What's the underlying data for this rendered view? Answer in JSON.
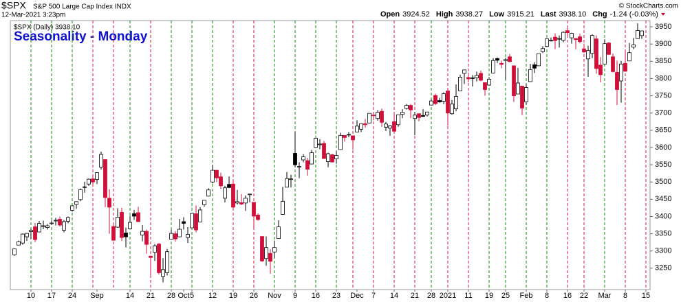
{
  "chart_data": {
    "type": "candlestick",
    "symbol": "$SPX",
    "description": "S&P 500 Large Cap Index INDX",
    "timestamp": "12-Mar-2021 3:23pm",
    "credit": "© StockCharts.com",
    "quote": [
      {
        "label": "Open",
        "value": "3924.52"
      },
      {
        "label": "High",
        "value": "3938.27"
      },
      {
        "label": "Low",
        "value": "3915.21"
      },
      {
        "label": "Last",
        "value": "3938.10"
      },
      {
        "label": "Chg",
        "value": "-1.24 (-0.03%)"
      }
    ],
    "title": "Seasonality - Monday",
    "legend": "$SPX (Daily) 3938.10",
    "categories": [
      null,
      null,
      null,
      null,
      "10",
      null,
      null,
      null,
      null,
      "17",
      null,
      null,
      null,
      null,
      "24",
      null,
      null,
      null,
      null,
      null,
      "Sep",
      null,
      null,
      null,
      null,
      null,
      null,
      null,
      "14",
      null,
      null,
      null,
      null,
      "21",
      null,
      null,
      null,
      null,
      "28",
      null,
      null,
      "Oct",
      null,
      "5",
      null,
      null,
      null,
      null,
      "12",
      null,
      null,
      null,
      null,
      "19",
      null,
      null,
      null,
      null,
      "26",
      null,
      null,
      null,
      null,
      "Nov",
      null,
      null,
      null,
      null,
      "9",
      null,
      null,
      null,
      null,
      "16",
      null,
      null,
      null,
      null,
      "23",
      null,
      null,
      null,
      null,
      "Dec",
      null,
      null,
      null,
      "7",
      null,
      null,
      null,
      null,
      "14",
      null,
      null,
      null,
      null,
      "21",
      null,
      null,
      null,
      "28",
      null,
      null,
      null,
      "2021",
      null,
      null,
      null,
      null,
      "11",
      null,
      null,
      null,
      null,
      "19",
      null,
      null,
      null,
      "25",
      null,
      null,
      null,
      null,
      "Feb",
      null,
      null,
      null,
      null,
      "8",
      null,
      null,
      null,
      null,
      "16",
      null,
      null,
      null,
      "22",
      null,
      null,
      null,
      null,
      "Mar",
      null,
      null,
      null,
      null,
      "8",
      null,
      null,
      null,
      null,
      "15"
    ],
    "candles": [
      [
        3289,
        3306,
        3286,
        3306
      ],
      [
        3317,
        3330,
        3317,
        3327
      ],
      [
        3323,
        3351,
        3318,
        3349
      ],
      [
        3341,
        3352,
        3329,
        3351
      ],
      [
        3356,
        3364,
        3335,
        3360
      ],
      [
        3370,
        3381,
        3326,
        3333
      ],
      [
        3355,
        3387,
        3355,
        3380
      ],
      [
        3373,
        3388,
        3363,
        3373
      ],
      [
        3368,
        3378,
        3362,
        3373
      ],
      [
        3380,
        3388,
        3376,
        3381
      ],
      [
        3387,
        3396,
        3374,
        3389
      ],
      [
        3392,
        3400,
        3371,
        3375
      ],
      [
        3360,
        3390,
        3354,
        3385
      ],
      [
        3386,
        3400,
        3380,
        3397
      ],
      [
        3418,
        3432,
        3414,
        3431
      ],
      [
        3435,
        3444,
        3422,
        3443
      ],
      [
        3449,
        3481,
        3444,
        3478
      ],
      [
        3486,
        3501,
        3469,
        3484
      ],
      [
        3494,
        3510,
        3489,
        3508
      ],
      [
        3509,
        3514,
        3494,
        3500
      ],
      [
        3507,
        3528,
        3494,
        3527
      ],
      [
        3543,
        3588,
        3536,
        3580
      ],
      [
        3565,
        3565,
        3427,
        3455
      ],
      [
        3453,
        3479,
        3350,
        3427
      ],
      [
        3371,
        3379,
        3330,
        3331
      ],
      [
        3369,
        3424,
        3367,
        3398
      ],
      [
        3412,
        3425,
        3329,
        3339
      ],
      [
        3352,
        3368,
        3310,
        3341
      ],
      [
        3364,
        3402,
        3364,
        3383
      ],
      [
        3408,
        3419,
        3390,
        3401
      ],
      [
        3411,
        3428,
        3384,
        3385
      ],
      [
        3346,
        3375,
        3328,
        3357
      ],
      [
        3357,
        3362,
        3292,
        3319
      ],
      [
        3285,
        3286,
        3229,
        3281
      ],
      [
        3296,
        3320,
        3271,
        3315
      ],
      [
        3320,
        3323,
        3232,
        3237
      ],
      [
        3226,
        3279,
        3209,
        3246
      ],
      [
        3237,
        3306,
        3229,
        3298
      ],
      [
        3334,
        3361,
        3334,
        3351
      ],
      [
        3350,
        3358,
        3327,
        3335
      ],
      [
        3341,
        3393,
        3340,
        3363
      ],
      [
        3385,
        3398,
        3362,
        3380
      ],
      [
        3339,
        3369,
        3323,
        3348
      ],
      [
        3367,
        3409,
        3367,
        3409
      ],
      [
        3408,
        3432,
        3354,
        3361
      ],
      [
        3384,
        3427,
        3384,
        3419
      ],
      [
        3434,
        3447,
        3428,
        3447
      ],
      [
        3459,
        3482,
        3458,
        3477
      ],
      [
        3500,
        3550,
        3496,
        3534
      ],
      [
        3534,
        3534,
        3500,
        3512
      ],
      [
        3515,
        3527,
        3480,
        3489
      ],
      [
        3453,
        3489,
        3441,
        3483
      ],
      [
        3493,
        3516,
        3482,
        3484
      ],
      [
        3494,
        3502,
        3420,
        3427
      ],
      [
        3439,
        3477,
        3435,
        3443
      ],
      [
        3440,
        3465,
        3433,
        3436
      ],
      [
        3439,
        3461,
        3416,
        3453
      ],
      [
        3464,
        3466,
        3441,
        3465
      ],
      [
        3441,
        3441,
        3364,
        3401
      ],
      [
        3404,
        3409,
        3388,
        3391
      ],
      [
        3342,
        3342,
        3268,
        3271
      ],
      [
        3278,
        3342,
        3257,
        3310
      ],
      [
        3293,
        3305,
        3234,
        3270
      ],
      [
        3297,
        3330,
        3279,
        3310
      ],
      [
        3336,
        3389,
        3336,
        3370
      ],
      [
        3406,
        3486,
        3405,
        3444
      ],
      [
        3485,
        3529,
        3485,
        3510
      ],
      [
        3508,
        3521,
        3484,
        3509
      ],
      [
        3583,
        3646,
        3543,
        3550
      ],
      [
        3544,
        3557,
        3511,
        3545
      ],
      [
        3564,
        3581,
        3557,
        3573
      ],
      [
        3562,
        3570,
        3518,
        3537
      ],
      [
        3552,
        3593,
        3552,
        3585
      ],
      [
        3600,
        3628,
        3600,
        3627
      ],
      [
        3610,
        3624,
        3595,
        3610
      ],
      [
        3612,
        3619,
        3567,
        3568
      ],
      [
        3559,
        3585,
        3543,
        3582
      ],
      [
        3579,
        3582,
        3556,
        3558
      ],
      [
        3567,
        3589,
        3553,
        3577
      ],
      [
        3594,
        3643,
        3594,
        3635
      ],
      [
        3635,
        3636,
        3617,
        3629
      ],
      [
        3638,
        3645,
        3630,
        3638
      ],
      [
        3634,
        3634,
        3594,
        3622
      ],
      [
        3645,
        3679,
        3645,
        3662
      ],
      [
        3653,
        3670,
        3645,
        3669
      ],
      [
        3669,
        3683,
        3657,
        3666
      ],
      [
        3671,
        3699,
        3670,
        3699
      ],
      [
        3694,
        3697,
        3679,
        3692
      ],
      [
        3684,
        3708,
        3678,
        3702
      ],
      [
        3705,
        3713,
        3660,
        3673
      ],
      [
        3659,
        3674,
        3648,
        3668
      ],
      [
        3656,
        3665,
        3634,
        3663
      ],
      [
        3675,
        3697,
        3645,
        3647
      ],
      [
        3666,
        3695,
        3660,
        3695
      ],
      [
        3696,
        3711,
        3685,
        3702
      ],
      [
        3713,
        3726,
        3710,
        3722
      ],
      [
        3722,
        3726,
        3685,
        3709
      ],
      [
        3684,
        3703,
        3636,
        3694
      ],
      [
        3698,
        3698,
        3676,
        3687
      ],
      [
        3693,
        3711,
        3689,
        3690
      ],
      [
        3694,
        3703,
        3690,
        3703
      ],
      [
        3723,
        3740,
        3723,
        3735
      ],
      [
        3751,
        3756,
        3723,
        3727
      ],
      [
        3736,
        3744,
        3730,
        3732
      ],
      [
        3734,
        3760,
        3726,
        3756
      ],
      [
        3764,
        3770,
        3663,
        3700
      ],
      [
        3698,
        3738,
        3695,
        3726
      ],
      [
        3712,
        3783,
        3705,
        3748
      ],
      [
        3764,
        3811,
        3764,
        3804
      ],
      [
        3815,
        3826,
        3784,
        3825
      ],
      [
        3803,
        3817,
        3789,
        3799
      ],
      [
        3802,
        3810,
        3777,
        3801
      ],
      [
        3802,
        3820,
        3792,
        3809
      ],
      [
        3815,
        3823,
        3792,
        3795
      ],
      [
        3788,
        3789,
        3750,
        3768
      ],
      [
        3781,
        3804,
        3780,
        3798
      ],
      [
        3816,
        3859,
        3816,
        3852
      ],
      [
        3858,
        3861,
        3845,
        3853
      ],
      [
        3844,
        3852,
        3830,
        3841
      ],
      [
        3852,
        3860,
        3797,
        3855
      ],
      [
        3863,
        3871,
        3847,
        3849
      ],
      [
        3837,
        3837,
        3732,
        3750
      ],
      [
        3755,
        3831,
        3755,
        3787
      ],
      [
        3778,
        3778,
        3694,
        3714
      ],
      [
        3732,
        3784,
        3725,
        3774
      ],
      [
        3791,
        3843,
        3791,
        3826
      ],
      [
        3840,
        3847,
        3816,
        3830
      ],
      [
        3837,
        3872,
        3836,
        3872
      ],
      [
        3878,
        3894,
        3874,
        3887
      ],
      [
        3893,
        3915,
        3892,
        3915
      ],
      [
        3910,
        3919,
        3907,
        3911
      ],
      [
        3920,
        3931,
        3885,
        3910
      ],
      [
        3916,
        3925,
        3890,
        3916
      ],
      [
        3911,
        3937,
        3905,
        3934
      ],
      [
        3939,
        3950,
        3923,
        3933
      ],
      [
        3918,
        3933,
        3901,
        3931
      ],
      [
        3916,
        3917,
        3885,
        3913
      ],
      [
        3921,
        3930,
        3902,
        3907
      ],
      [
        3886,
        3901,
        3874,
        3877
      ],
      [
        3857,
        3895,
        3805,
        3881
      ],
      [
        3873,
        3928,
        3859,
        3925
      ],
      [
        3915,
        3925,
        3814,
        3829
      ],
      [
        3839,
        3862,
        3789,
        3811
      ],
      [
        3842,
        3914,
        3842,
        3901
      ],
      [
        3903,
        3906,
        3868,
        3870
      ],
      [
        3863,
        3873,
        3818,
        3820
      ],
      [
        3818,
        3852,
        3723,
        3768
      ],
      [
        3793,
        3851,
        3730,
        3842
      ],
      [
        3844,
        3881,
        3820,
        3821
      ],
      [
        3851,
        3903,
        3851,
        3875
      ],
      [
        3891,
        3918,
        3885,
        3898
      ],
      [
        3916,
        3960,
        3915,
        3939
      ],
      [
        3924.52,
        3938.27,
        3915.21,
        3938.1
      ],
      null
    ],
    "ylim": [
      3188,
      3968
    ],
    "yticks": [
      3250,
      3300,
      3350,
      3400,
      3450,
      3500,
      3550,
      3600,
      3650,
      3700,
      3750,
      3800,
      3850,
      3900,
      3950
    ],
    "up_color": "#ffffff",
    "down_color": "#d0103a",
    "neutral_down_color": "#000000",
    "up_line_color": "#008a00",
    "down_line_color": "#d0103a"
  }
}
